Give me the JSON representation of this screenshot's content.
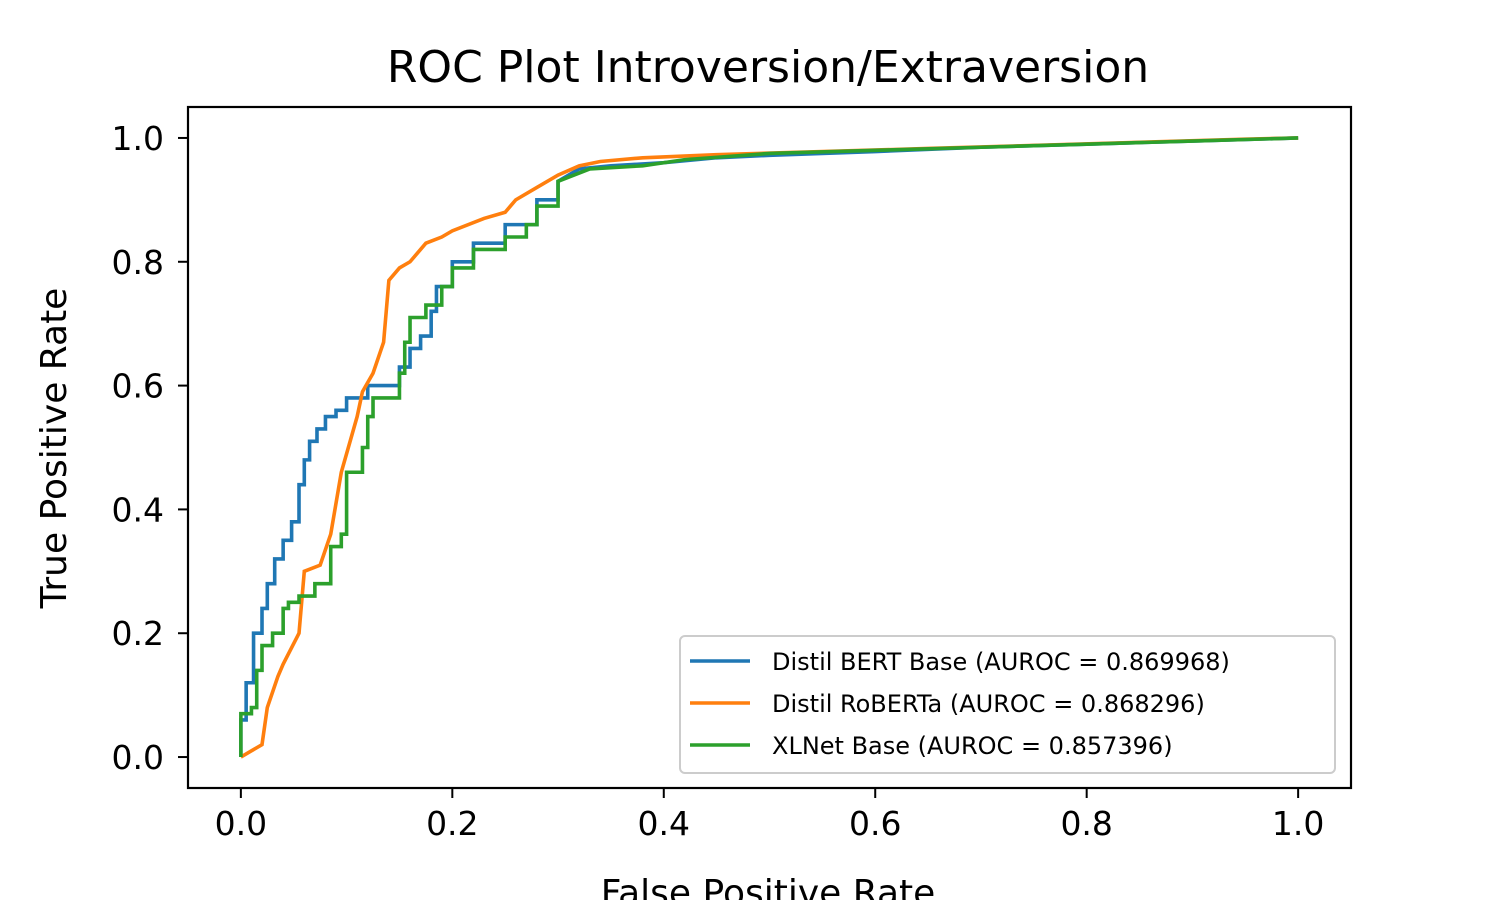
{
  "chart_data": {
    "type": "line",
    "title": "ROC Plot Introversion/Extraversion",
    "xlabel": "False Positive Rate",
    "ylabel": "True Positive Rate",
    "xlim": [
      -0.05,
      1.05
    ],
    "ylim": [
      -0.05,
      1.05
    ],
    "xticks": [
      "0.0",
      "0.2",
      "0.4",
      "0.6",
      "0.8",
      "1.0"
    ],
    "yticks": [
      "0.0",
      "0.2",
      "0.4",
      "0.6",
      "0.8",
      "1.0"
    ],
    "grid": false,
    "legend_position": "lower-right",
    "series": [
      {
        "name": "Distil BERT Base (AUROC = 0.869968)",
        "color": "#1f77b4",
        "x": [
          0.0,
          0.0,
          0.005,
          0.005,
          0.012,
          0.012,
          0.02,
          0.02,
          0.025,
          0.025,
          0.032,
          0.032,
          0.04,
          0.04,
          0.048,
          0.048,
          0.055,
          0.055,
          0.06,
          0.06,
          0.065,
          0.065,
          0.072,
          0.072,
          0.08,
          0.08,
          0.09,
          0.09,
          0.1,
          0.1,
          0.12,
          0.12,
          0.15,
          0.15,
          0.16,
          0.16,
          0.17,
          0.17,
          0.18,
          0.18,
          0.185,
          0.185,
          0.2,
          0.2,
          0.22,
          0.22,
          0.25,
          0.25,
          0.28,
          0.28,
          0.3,
          0.3,
          0.32,
          0.35,
          0.4,
          0.45,
          0.5,
          0.6,
          0.7,
          0.8,
          0.9,
          1.0
        ],
        "y": [
          0.0,
          0.06,
          0.06,
          0.12,
          0.12,
          0.2,
          0.2,
          0.24,
          0.24,
          0.28,
          0.28,
          0.32,
          0.32,
          0.35,
          0.35,
          0.38,
          0.38,
          0.44,
          0.44,
          0.48,
          0.48,
          0.51,
          0.51,
          0.53,
          0.53,
          0.55,
          0.55,
          0.56,
          0.56,
          0.58,
          0.58,
          0.6,
          0.6,
          0.63,
          0.63,
          0.66,
          0.66,
          0.68,
          0.68,
          0.72,
          0.72,
          0.76,
          0.76,
          0.8,
          0.8,
          0.83,
          0.83,
          0.86,
          0.86,
          0.9,
          0.9,
          0.93,
          0.95,
          0.955,
          0.96,
          0.968,
          0.972,
          0.978,
          0.985,
          0.99,
          0.995,
          1.0
        ]
      },
      {
        "name": "Distil RoBERTa (AUROC = 0.868296)",
        "color": "#ff7f0e",
        "x": [
          0.0,
          0.01,
          0.01,
          0.02,
          0.02,
          0.025,
          0.025,
          0.035,
          0.035,
          0.04,
          0.04,
          0.055,
          0.055,
          0.06,
          0.06,
          0.075,
          0.075,
          0.085,
          0.085,
          0.09,
          0.09,
          0.095,
          0.095,
          0.105,
          0.105,
          0.11,
          0.11,
          0.115,
          0.115,
          0.125,
          0.125,
          0.135,
          0.135,
          0.14,
          0.14,
          0.15,
          0.15,
          0.16,
          0.16,
          0.175,
          0.175,
          0.19,
          0.19,
          0.2,
          0.2,
          0.23,
          0.23,
          0.25,
          0.25,
          0.26,
          0.26,
          0.28,
          0.28,
          0.3,
          0.32,
          0.34,
          0.38,
          0.45,
          0.55,
          0.65,
          0.75,
          0.85,
          0.95,
          1.0
        ],
        "y": [
          0.0,
          0.01,
          0.01,
          0.02,
          0.02,
          0.08,
          0.08,
          0.13,
          0.13,
          0.15,
          0.15,
          0.2,
          0.2,
          0.3,
          0.3,
          0.31,
          0.31,
          0.36,
          0.36,
          0.41,
          0.41,
          0.46,
          0.46,
          0.52,
          0.52,
          0.55,
          0.55,
          0.59,
          0.59,
          0.62,
          0.62,
          0.67,
          0.67,
          0.77,
          0.77,
          0.79,
          0.79,
          0.8,
          0.8,
          0.83,
          0.83,
          0.84,
          0.84,
          0.85,
          0.85,
          0.87,
          0.87,
          0.88,
          0.88,
          0.9,
          0.9,
          0.92,
          0.92,
          0.94,
          0.955,
          0.962,
          0.968,
          0.973,
          0.978,
          0.983,
          0.988,
          0.993,
          0.998,
          1.0
        ]
      },
      {
        "name": "XLNet Base (AUROC = 0.857396)",
        "color": "#2ca02c",
        "x": [
          0.0,
          0.0,
          0.01,
          0.01,
          0.015,
          0.015,
          0.02,
          0.02,
          0.03,
          0.03,
          0.04,
          0.04,
          0.045,
          0.045,
          0.055,
          0.055,
          0.07,
          0.07,
          0.085,
          0.085,
          0.095,
          0.095,
          0.1,
          0.1,
          0.115,
          0.115,
          0.12,
          0.12,
          0.125,
          0.125,
          0.15,
          0.15,
          0.155,
          0.155,
          0.16,
          0.16,
          0.175,
          0.175,
          0.19,
          0.19,
          0.2,
          0.2,
          0.22,
          0.22,
          0.25,
          0.25,
          0.27,
          0.27,
          0.28,
          0.28,
          0.3,
          0.3,
          0.33,
          0.38,
          0.42,
          0.5,
          0.6,
          0.7,
          0.8,
          0.9,
          1.0
        ],
        "y": [
          0.0,
          0.07,
          0.07,
          0.08,
          0.08,
          0.14,
          0.14,
          0.18,
          0.18,
          0.2,
          0.2,
          0.24,
          0.24,
          0.25,
          0.25,
          0.26,
          0.26,
          0.28,
          0.28,
          0.34,
          0.34,
          0.36,
          0.36,
          0.46,
          0.46,
          0.5,
          0.5,
          0.55,
          0.55,
          0.58,
          0.58,
          0.62,
          0.62,
          0.67,
          0.67,
          0.71,
          0.71,
          0.73,
          0.73,
          0.76,
          0.76,
          0.79,
          0.79,
          0.82,
          0.82,
          0.84,
          0.84,
          0.86,
          0.86,
          0.89,
          0.89,
          0.93,
          0.95,
          0.955,
          0.965,
          0.975,
          0.98,
          0.985,
          0.99,
          0.995,
          1.0
        ]
      }
    ]
  }
}
